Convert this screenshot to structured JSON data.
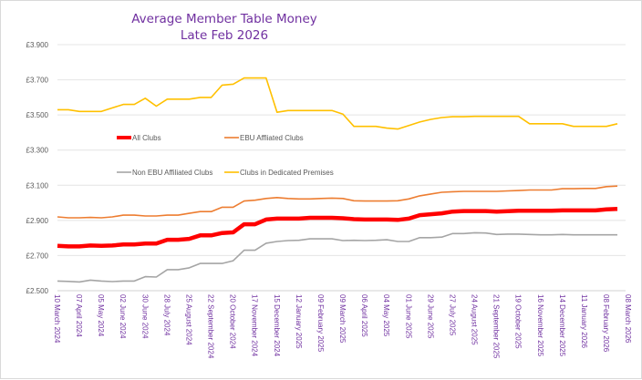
{
  "chart_data": {
    "type": "line",
    "title": "Average Member Table Money",
    "subtitle": "Late Feb 2026",
    "xlabel": "",
    "ylabel": "",
    "ylim": [
      2.5,
      3.9
    ],
    "yticks": [
      "£2.500",
      "£2.700",
      "£2.900",
      "£3.100",
      "£3.300",
      "£3.500",
      "£3.700",
      "£3.900"
    ],
    "ytick_values": [
      2.5,
      2.7,
      2.9,
      3.1,
      3.3,
      3.5,
      3.7,
      3.9
    ],
    "xtick_labels": [
      "10 March 2024",
      "07 April 2024",
      "05 May 2024",
      "02 June 2024",
      "30 June 2024",
      "28 July 2024",
      "25 August 2024",
      "22 September 2024",
      "20 October 2024",
      "17 November 2024",
      "15 December 2024",
      "12 January 2025",
      "09 February 2025",
      "09 March 2025",
      "06 April 2025",
      "04 May 2025",
      "01 June 2025",
      "29 June 2025",
      "27 July 2025",
      "24 August 2025",
      "21 September 2025",
      "19 October 2025",
      "16 November 2025",
      "14 December 2025",
      "11 January 2026",
      "08 February 2026",
      "08 March 2026"
    ],
    "x_start": "10 March 2024",
    "x_interval": "fortnightly",
    "grid": true,
    "legend_placement": "inside-center",
    "series": [
      {
        "name": "All Clubs",
        "color": "#ff0000",
        "values": [
          2.755,
          2.752,
          2.752,
          2.757,
          2.755,
          2.757,
          2.763,
          2.763,
          2.768,
          2.768,
          2.79,
          2.79,
          2.795,
          2.815,
          2.815,
          2.828,
          2.832,
          2.878,
          2.878,
          2.905,
          2.91,
          2.91,
          2.91,
          2.915,
          2.915,
          2.915,
          2.912,
          2.907,
          2.905,
          2.905,
          2.905,
          2.903,
          2.91,
          2.93,
          2.935,
          2.94,
          2.95,
          2.953,
          2.953,
          2.953,
          2.95,
          2.952,
          2.955,
          2.955,
          2.955,
          2.955,
          2.957,
          2.957,
          2.957,
          2.957,
          2.963,
          2.965
        ]
      },
      {
        "name": "EBU Affliated Clubs",
        "color": "#ed7d31",
        "values": [
          2.92,
          2.915,
          2.915,
          2.917,
          2.915,
          2.92,
          2.93,
          2.93,
          2.925,
          2.925,
          2.93,
          2.93,
          2.94,
          2.95,
          2.95,
          2.975,
          2.975,
          3.01,
          3.015,
          3.025,
          3.03,
          3.025,
          3.022,
          3.022,
          3.025,
          3.027,
          3.025,
          3.012,
          3.01,
          3.01,
          3.01,
          3.012,
          3.022,
          3.04,
          3.05,
          3.06,
          3.063,
          3.065,
          3.065,
          3.065,
          3.065,
          3.068,
          3.07,
          3.073,
          3.073,
          3.073,
          3.08,
          3.08,
          3.082,
          3.082,
          3.092,
          3.095
        ]
      },
      {
        "name": "Non EBU Affiliated Clubs",
        "color": "#a5a5a5",
        "values": [
          2.555,
          2.553,
          2.55,
          2.56,
          2.555,
          2.552,
          2.555,
          2.555,
          2.58,
          2.578,
          2.62,
          2.62,
          2.63,
          2.655,
          2.655,
          2.655,
          2.67,
          2.73,
          2.73,
          2.77,
          2.78,
          2.785,
          2.787,
          2.795,
          2.795,
          2.795,
          2.785,
          2.787,
          2.785,
          2.787,
          2.79,
          2.78,
          2.78,
          2.802,
          2.802,
          2.805,
          2.825,
          2.825,
          2.83,
          2.828,
          2.82,
          2.822,
          2.822,
          2.82,
          2.818,
          2.818,
          2.82,
          2.818,
          2.818,
          2.818,
          2.818,
          2.818
        ]
      },
      {
        "name": "Clubs in Dedicated Premises",
        "color": "#ffc000",
        "values": [
          3.53,
          3.53,
          3.52,
          3.52,
          3.52,
          3.54,
          3.56,
          3.56,
          3.595,
          3.55,
          3.59,
          3.59,
          3.59,
          3.6,
          3.6,
          3.67,
          3.675,
          3.71,
          3.71,
          3.71,
          3.515,
          3.525,
          3.525,
          3.525,
          3.525,
          3.525,
          3.505,
          3.435,
          3.435,
          3.435,
          3.425,
          3.42,
          3.44,
          3.46,
          3.475,
          3.485,
          3.49,
          3.49,
          3.492,
          3.492,
          3.492,
          3.492,
          3.492,
          3.45,
          3.45,
          3.45,
          3.45,
          3.435,
          3.435,
          3.435,
          3.435,
          3.45
        ]
      }
    ]
  }
}
